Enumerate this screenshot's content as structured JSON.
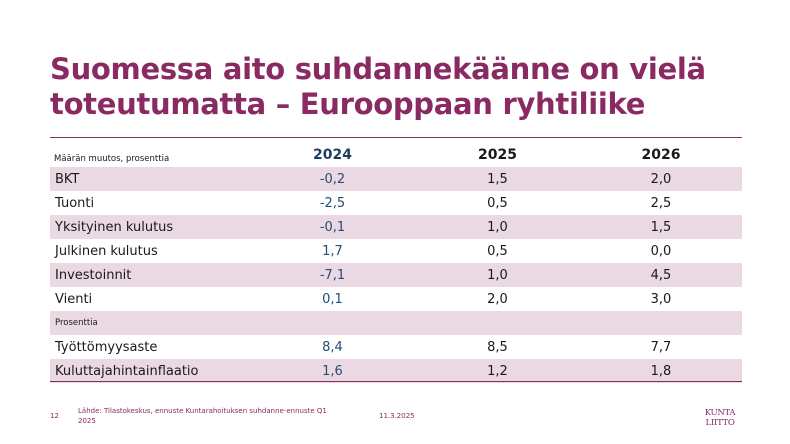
{
  "title": {
    "line1": "Suomessa aito suhdannekäänne on vielä",
    "line2": "toteutumatta – Eurooppaan ryhtiliike"
  },
  "table": {
    "header_label": "Määrän muutos, prosenttia",
    "years": [
      "2024",
      "2025",
      "2026"
    ],
    "rows": [
      {
        "label": "BKT",
        "values": [
          "-0,2",
          "1,5",
          "2,0"
        ]
      },
      {
        "label": "Tuonti",
        "values": [
          "-2,5",
          "0,5",
          "2,5"
        ]
      },
      {
        "label": "Yksityinen kulutus",
        "values": [
          "-0,1",
          "1,0",
          "1,5"
        ]
      },
      {
        "label": "Julkinen kulutus",
        "values": [
          "1,7",
          "0,5",
          "0,0"
        ]
      },
      {
        "label": "Investoinnit",
        "values": [
          "-7,1",
          "1,0",
          "4,5"
        ]
      },
      {
        "label": "Vienti",
        "values": [
          "0,1",
          "2,0",
          "3,0"
        ]
      }
    ],
    "sub_label": "Prosenttia",
    "rows2": [
      {
        "label": "Työttömyysaste",
        "values": [
          "8,4",
          "8,5",
          "7,7"
        ]
      },
      {
        "label": "Kuluttajahintainflaatio",
        "values": [
          "1,6",
          "1,2",
          "1,8"
        ]
      }
    ]
  },
  "footer": {
    "page_number": "12",
    "source": "Lähde: Tilastokeskus, ennuste Kuntarahoituksen suhdanne-ennuste Q1 2025",
    "date": "11.3.2025",
    "logo_text": "KUNTALIITTO"
  },
  "colors": {
    "accent": "#8a2a62",
    "row_shade": "#ead8e3",
    "year2024": "#1f4e79"
  }
}
